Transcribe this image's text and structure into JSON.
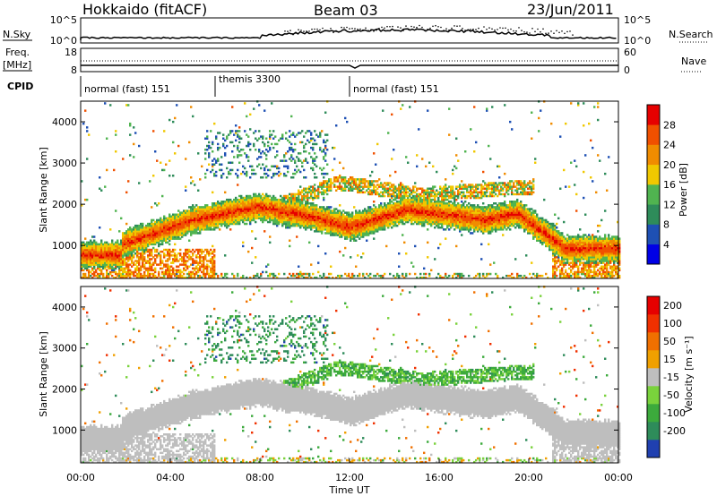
{
  "header": {
    "station": "Hokkaido (fitACF)",
    "beam": "Beam 03",
    "date": "23/Jun/2011"
  },
  "top_panels": {
    "nsky_label": "N.Sky",
    "nsky_ticks": [
      "10^5",
      "10^0"
    ],
    "nsearch_label": "N.Search",
    "nsearch_ticks": [
      "10^5",
      "10^0"
    ],
    "freq_label": "Freq.",
    "freq_unit": "[MHz]",
    "freq_ticks": [
      "18",
      "8"
    ],
    "nave_label": "Nave",
    "nave_ticks": [
      "60",
      "0"
    ],
    "cpid_label": "CPID",
    "cpid_segments": [
      {
        "label": "normal (fast) 151",
        "start_hour": 0,
        "end_hour": 6
      },
      {
        "label": "themis 3300",
        "start_hour": 6,
        "end_hour": 12
      },
      {
        "label": "normal (fast) 151",
        "start_hour": 12,
        "end_hour": 24
      }
    ]
  },
  "chart_data": [
    {
      "type": "heatmap",
      "ylabel": "Slant Range [km]",
      "xlim": [
        0,
        24
      ],
      "ylim": [
        200,
        4500
      ],
      "yticks": [
        "1000",
        "2000",
        "3000",
        "4000"
      ],
      "colorbar": {
        "label": "Power [dB]",
        "ticks": [
          "28",
          "24",
          "20",
          "16",
          "12",
          "8",
          "4"
        ],
        "range": [
          0,
          30
        ],
        "colors": [
          "#0000e6",
          "#1e50b4",
          "#2e8c5a",
          "#50b450",
          "#f0c800",
          "#f08c00",
          "#f05000",
          "#e60000"
        ]
      }
    },
    {
      "type": "heatmap",
      "ylabel": "Slant Range [km]",
      "xlabel": "Time UT",
      "xlim": [
        0,
        24
      ],
      "ylim": [
        200,
        4500
      ],
      "xticks": [
        "00:00",
        "04:00",
        "08:00",
        "12:00",
        "16:00",
        "20:00",
        "00:00"
      ],
      "yticks": [
        "1000",
        "2000",
        "3000",
        "4000"
      ],
      "colorbar": {
        "label": "Velocity [m s⁻¹]",
        "ticks": [
          "200",
          "100",
          "50",
          "15",
          "-15",
          "-50",
          "-100",
          "-200"
        ],
        "range": [
          -250,
          250
        ],
        "colors": [
          "#2040b0",
          "#2e8c5a",
          "#3caa3c",
          "#7ad23c",
          "#bebebe",
          "#f0a000",
          "#f07000",
          "#f03000",
          "#e60000"
        ]
      }
    }
  ],
  "ground_scatter_color": "#bebebe"
}
